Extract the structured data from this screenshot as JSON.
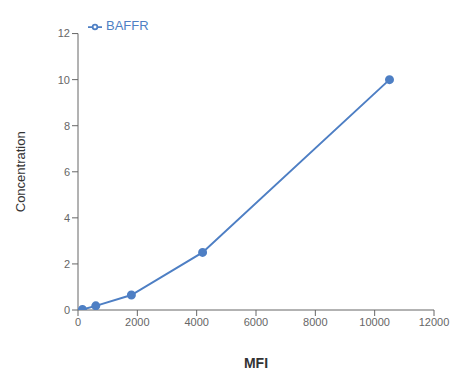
{
  "chart_data": {
    "type": "line",
    "xlabel": "MFI",
    "ylabel": "Concentration",
    "x": [
      150,
      600,
      1800,
      4200,
      10500
    ],
    "series": [
      {
        "name": "BAFFR",
        "color": "#4E7FC4",
        "marker": "circle",
        "values": [
          0.02,
          0.18,
          0.65,
          2.5,
          10.0
        ]
      }
    ],
    "xlim": [
      0,
      12000
    ],
    "ylim": [
      0,
      12
    ],
    "xticks": [
      0,
      2000,
      4000,
      6000,
      8000,
      10000,
      12000
    ],
    "yticks": [
      0,
      2,
      4,
      6,
      8,
      10,
      12
    ],
    "grid": false,
    "legend": "upper left"
  }
}
